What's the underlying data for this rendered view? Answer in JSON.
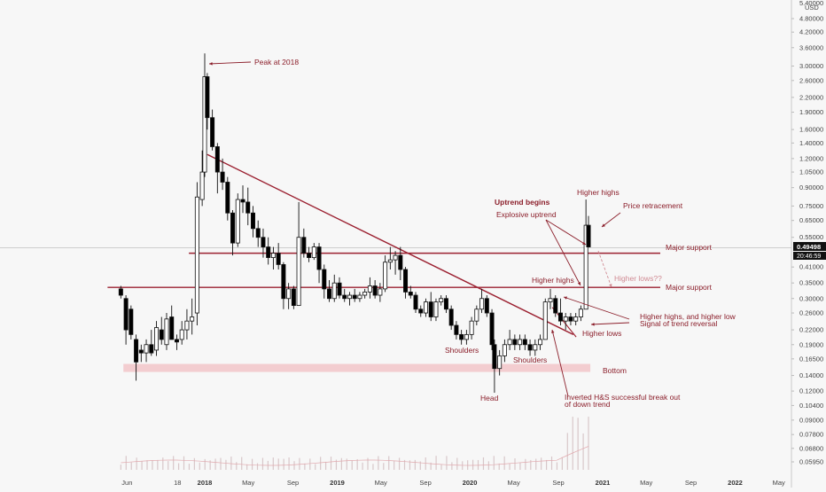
{
  "chart_data": {
    "type": "candlestick",
    "scale": "log",
    "currency": "USD",
    "y_top_label": "5.40000",
    "ylim": [
      0.052,
      5.4
    ],
    "y_ticks": [
      4.8,
      4.2,
      3.6,
      3.0,
      2.6,
      2.2,
      1.9,
      1.6,
      1.4,
      1.2,
      1.05,
      0.9,
      0.75,
      0.65,
      0.55,
      0.41,
      0.35,
      0.3,
      0.26,
      0.22,
      0.19,
      0.165,
      0.14,
      0.12,
      0.104,
      0.09,
      0.078,
      0.068,
      0.0595
    ],
    "y_tick_labels": [
      "4.80000",
      "4.20000",
      "3.60000",
      "3.00000",
      "2.60000",
      "2.20000",
      "1.90000",
      "1.60000",
      "1.40000",
      "1.20000",
      "1.05000",
      "0.90000",
      "0.75000",
      "0.65000",
      "0.55000",
      "0.41000",
      "0.35000",
      "0.30000",
      "0.26000",
      "0.22000",
      "0.19000",
      "0.16500",
      "0.14000",
      "0.12000",
      "0.10400",
      "0.09000",
      "0.07800",
      "0.06800",
      "0.05950"
    ],
    "x_ticks": [
      {
        "label": "Jun",
        "bold": false,
        "date": "2017-06-01"
      },
      {
        "label": "18",
        "bold": false,
        "date": "2017-10-18"
      },
      {
        "label": "2018",
        "bold": true,
        "date": "2018-01-01"
      },
      {
        "label": "May",
        "bold": false,
        "date": "2018-05-01"
      },
      {
        "label": "Sep",
        "bold": false,
        "date": "2018-09-01"
      },
      {
        "label": "2019",
        "bold": true,
        "date": "2019-01-01"
      },
      {
        "label": "May",
        "bold": false,
        "date": "2019-05-01"
      },
      {
        "label": "Sep",
        "bold": false,
        "date": "2019-09-01"
      },
      {
        "label": "2020",
        "bold": true,
        "date": "2020-01-01"
      },
      {
        "label": "May",
        "bold": false,
        "date": "2020-05-01"
      },
      {
        "label": "Sep",
        "bold": false,
        "date": "2020-09-01"
      },
      {
        "label": "2021",
        "bold": true,
        "date": "2021-01-01"
      },
      {
        "label": "May",
        "bold": false,
        "date": "2021-05-01"
      },
      {
        "label": "Sep",
        "bold": false,
        "date": "2021-09-01"
      },
      {
        "label": "2022",
        "bold": true,
        "date": "2022-01-01"
      },
      {
        "label": "May",
        "bold": false,
        "date": "2022-05-01"
      }
    ],
    "price_tag": {
      "value": 0.49498,
      "label": "0.49498",
      "countdown": "20:46:59"
    },
    "series": [
      {
        "name": "",
        "ohlc_weekly": [
          [
            "2017-05-15",
            0.33,
            0.34,
            0.3,
            0.31
          ],
          [
            "2017-05-29",
            0.3,
            0.31,
            0.19,
            0.22
          ],
          [
            "2017-06-12",
            0.27,
            0.28,
            0.2,
            0.21
          ],
          [
            "2017-06-26",
            0.2,
            0.21,
            0.133,
            0.16
          ],
          [
            "2017-07-10",
            0.18,
            0.19,
            0.16,
            0.175
          ],
          [
            "2017-07-24",
            0.175,
            0.2,
            0.16,
            0.19
          ],
          [
            "2017-08-07",
            0.19,
            0.22,
            0.17,
            0.175
          ],
          [
            "2017-08-21",
            0.18,
            0.24,
            0.17,
            0.225
          ],
          [
            "2017-09-04",
            0.22,
            0.25,
            0.19,
            0.2
          ],
          [
            "2017-09-18",
            0.19,
            0.26,
            0.18,
            0.245
          ],
          [
            "2017-10-02",
            0.25,
            0.28,
            0.2,
            0.2
          ],
          [
            "2017-10-16",
            0.2,
            0.21,
            0.18,
            0.195
          ],
          [
            "2017-10-30",
            0.2,
            0.24,
            0.19,
            0.22
          ],
          [
            "2017-11-13",
            0.22,
            0.27,
            0.2,
            0.24
          ],
          [
            "2017-11-27",
            0.24,
            0.3,
            0.21,
            0.25
          ],
          [
            "2017-12-11",
            0.26,
            0.95,
            0.23,
            0.82
          ],
          [
            "2017-12-25",
            0.8,
            1.3,
            0.75,
            1.05
          ],
          [
            "2018-01-01",
            1.05,
            3.4,
            1.0,
            2.7
          ],
          [
            "2018-01-08",
            2.7,
            2.8,
            1.6,
            1.8
          ],
          [
            "2018-01-22",
            1.8,
            1.95,
            1.3,
            1.35
          ],
          [
            "2018-02-05",
            1.35,
            1.4,
            0.85,
            1.05
          ],
          [
            "2018-02-19",
            1.05,
            1.2,
            0.88,
            0.95
          ],
          [
            "2018-03-05",
            0.95,
            1.0,
            0.65,
            0.7
          ],
          [
            "2018-03-19",
            0.7,
            0.72,
            0.46,
            0.52
          ],
          [
            "2018-04-02",
            0.52,
            0.85,
            0.5,
            0.8
          ],
          [
            "2018-04-16",
            0.8,
            0.92,
            0.7,
            0.78
          ],
          [
            "2018-04-30",
            0.78,
            0.9,
            0.62,
            0.7
          ],
          [
            "2018-05-14",
            0.7,
            0.75,
            0.55,
            0.6
          ],
          [
            "2018-05-28",
            0.6,
            0.65,
            0.5,
            0.55
          ],
          [
            "2018-06-11",
            0.55,
            0.6,
            0.45,
            0.5
          ],
          [
            "2018-06-25",
            0.5,
            0.55,
            0.42,
            0.45
          ],
          [
            "2018-07-09",
            0.45,
            0.5,
            0.4,
            0.47
          ],
          [
            "2018-07-23",
            0.47,
            0.52,
            0.4,
            0.42
          ],
          [
            "2018-08-06",
            0.42,
            0.43,
            0.27,
            0.3
          ],
          [
            "2018-08-20",
            0.3,
            0.35,
            0.27,
            0.33
          ],
          [
            "2018-09-03",
            0.33,
            0.34,
            0.27,
            0.28
          ],
          [
            "2018-09-17",
            0.28,
            0.78,
            0.28,
            0.55
          ],
          [
            "2018-10-01",
            0.55,
            0.6,
            0.45,
            0.47
          ],
          [
            "2018-10-15",
            0.47,
            0.5,
            0.43,
            0.45
          ],
          [
            "2018-10-29",
            0.45,
            0.52,
            0.44,
            0.5
          ],
          [
            "2018-11-12",
            0.5,
            0.52,
            0.35,
            0.4
          ],
          [
            "2018-11-26",
            0.4,
            0.42,
            0.3,
            0.33
          ],
          [
            "2018-12-10",
            0.33,
            0.36,
            0.29,
            0.3
          ],
          [
            "2018-12-24",
            0.3,
            0.38,
            0.29,
            0.35
          ],
          [
            "2019-01-07",
            0.35,
            0.37,
            0.3,
            0.31
          ],
          [
            "2019-01-21",
            0.31,
            0.33,
            0.29,
            0.3
          ],
          [
            "2019-02-04",
            0.3,
            0.32,
            0.28,
            0.31
          ],
          [
            "2019-02-18",
            0.31,
            0.33,
            0.29,
            0.3
          ],
          [
            "2019-03-04",
            0.3,
            0.32,
            0.29,
            0.31
          ],
          [
            "2019-03-18",
            0.31,
            0.33,
            0.3,
            0.32
          ],
          [
            "2019-04-01",
            0.32,
            0.37,
            0.3,
            0.34
          ],
          [
            "2019-04-15",
            0.34,
            0.36,
            0.3,
            0.31
          ],
          [
            "2019-04-29",
            0.31,
            0.35,
            0.29,
            0.33
          ],
          [
            "2019-05-13",
            0.33,
            0.46,
            0.32,
            0.43
          ],
          [
            "2019-05-27",
            0.43,
            0.5,
            0.4,
            0.44
          ],
          [
            "2019-06-10",
            0.44,
            0.48,
            0.38,
            0.46
          ],
          [
            "2019-06-24",
            0.46,
            0.5,
            0.36,
            0.4
          ],
          [
            "2019-07-08",
            0.4,
            0.41,
            0.3,
            0.32
          ],
          [
            "2019-07-22",
            0.32,
            0.34,
            0.3,
            0.31
          ],
          [
            "2019-08-05",
            0.31,
            0.32,
            0.26,
            0.27
          ],
          [
            "2019-08-19",
            0.27,
            0.28,
            0.25,
            0.26
          ],
          [
            "2019-09-02",
            0.26,
            0.3,
            0.25,
            0.29
          ],
          [
            "2019-09-16",
            0.29,
            0.32,
            0.24,
            0.25
          ],
          [
            "2019-09-30",
            0.25,
            0.3,
            0.24,
            0.29
          ],
          [
            "2019-10-14",
            0.29,
            0.31,
            0.28,
            0.3
          ],
          [
            "2019-10-28",
            0.3,
            0.31,
            0.26,
            0.27
          ],
          [
            "2019-11-11",
            0.27,
            0.28,
            0.22,
            0.23
          ],
          [
            "2019-11-25",
            0.23,
            0.24,
            0.2,
            0.21
          ],
          [
            "2019-12-09",
            0.21,
            0.22,
            0.19,
            0.2
          ],
          [
            "2019-12-23",
            0.2,
            0.22,
            0.19,
            0.21
          ],
          [
            "2020-01-06",
            0.21,
            0.25,
            0.2,
            0.24
          ],
          [
            "2020-01-20",
            0.24,
            0.28,
            0.23,
            0.27
          ],
          [
            "2020-02-03",
            0.27,
            0.33,
            0.26,
            0.3
          ],
          [
            "2020-02-17",
            0.3,
            0.31,
            0.25,
            0.26
          ],
          [
            "2020-03-02",
            0.26,
            0.27,
            0.18,
            0.19
          ],
          [
            "2020-03-09",
            0.19,
            0.2,
            0.118,
            0.15
          ],
          [
            "2020-03-23",
            0.15,
            0.18,
            0.14,
            0.17
          ],
          [
            "2020-04-06",
            0.17,
            0.2,
            0.16,
            0.19
          ],
          [
            "2020-04-20",
            0.19,
            0.22,
            0.18,
            0.2
          ],
          [
            "2020-05-04",
            0.2,
            0.21,
            0.18,
            0.19
          ],
          [
            "2020-05-18",
            0.19,
            0.21,
            0.18,
            0.2
          ],
          [
            "2020-06-01",
            0.2,
            0.21,
            0.18,
            0.19
          ],
          [
            "2020-06-15",
            0.19,
            0.2,
            0.17,
            0.18
          ],
          [
            "2020-06-29",
            0.18,
            0.2,
            0.17,
            0.19
          ],
          [
            "2020-07-13",
            0.19,
            0.21,
            0.18,
            0.2
          ],
          [
            "2020-07-27",
            0.2,
            0.3,
            0.2,
            0.29
          ],
          [
            "2020-08-10",
            0.29,
            0.33,
            0.27,
            0.3
          ],
          [
            "2020-08-24",
            0.3,
            0.31,
            0.25,
            0.26
          ],
          [
            "2020-09-07",
            0.26,
            0.3,
            0.23,
            0.24
          ],
          [
            "2020-09-21",
            0.24,
            0.26,
            0.22,
            0.25
          ],
          [
            "2020-10-05",
            0.25,
            0.26,
            0.23,
            0.24
          ],
          [
            "2020-10-19",
            0.24,
            0.26,
            0.23,
            0.25
          ],
          [
            "2020-11-02",
            0.25,
            0.28,
            0.24,
            0.27
          ],
          [
            "2020-11-16",
            0.27,
            0.8,
            0.27,
            0.62
          ],
          [
            "2020-11-23",
            0.62,
            0.68,
            0.5,
            0.5
          ]
        ]
      }
    ],
    "volume_bars": 90,
    "horizontal_levels": [
      {
        "value": 0.47,
        "label": "Major support"
      },
      {
        "value": 0.335,
        "label": "Major support"
      }
    ],
    "bottom_zone": {
      "low": 0.145,
      "high": 0.157,
      "label": "Bottom"
    },
    "downtrend": {
      "from": [
        "2018-01-08",
        1.25
      ],
      "to": [
        "2020-10-12",
        0.21
      ]
    },
    "annotations": {
      "peak": "Peak at 2018",
      "uptrend_begins": "Uptrend begins",
      "explosive_uptrend": "Explosive uptrend",
      "higher_highs_top": "Higher highs",
      "price_retracement": "Price retracement",
      "higher_highs_mid": "Higher highs",
      "higher_lows_question": "Higher lows??",
      "higher_highs_lows_line1": "Higher highs, and higher low",
      "higher_highs_lows_line2": "Signal of trend reversal",
      "higher_lows": "Higher lows",
      "shoulders_left": "Shoulders",
      "shoulders_right": "Shoulders",
      "head": "Head",
      "breakout_line1": "Inverted H&S successful break out",
      "breakout_line2": "of down trend"
    },
    "colors": {
      "up": "#ffffff",
      "down": "#000000",
      "annotation": "#8b1e2a",
      "level": "#9b2030",
      "bottom_zone": "#f2c6c9",
      "volume": "#d8c7c9"
    }
  }
}
